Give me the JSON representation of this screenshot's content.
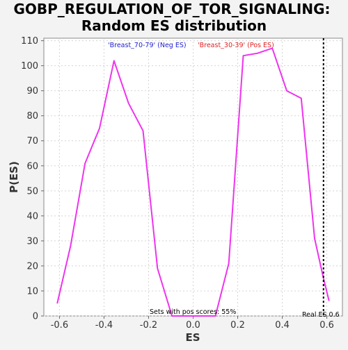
{
  "chart_data": {
    "type": "line",
    "title_lines": [
      "GOBP_REGULATION_OF_TOR_SIGNALING:",
      "Random ES distribution"
    ],
    "xlabel": "ES",
    "ylabel": "P(ES)",
    "xlim": [
      -0.67,
      0.67
    ],
    "ylim": [
      0,
      111
    ],
    "xticks": [
      -0.6,
      -0.4,
      -0.2,
      0.0,
      0.2,
      0.4,
      0.6
    ],
    "xtick_labels": [
      "-0.6",
      "-0.4",
      "-0.2",
      "0.0",
      "0.2",
      "0.4",
      "0.6"
    ],
    "yticks": [
      0,
      10,
      20,
      30,
      40,
      50,
      60,
      70,
      80,
      90,
      100,
      110
    ],
    "ytick_labels": [
      "0",
      "10",
      "20",
      "30",
      "40",
      "50",
      "60",
      "70",
      "80",
      "90",
      "100",
      "110"
    ],
    "grid": true,
    "series": [
      {
        "color": "#ee33ee",
        "x": [
          -0.61,
          -0.55,
          -0.485,
          -0.42,
          -0.355,
          -0.29,
          -0.225,
          -0.16,
          -0.095,
          -0.03,
          0.035,
          0.1,
          0.16,
          0.225,
          0.29,
          0.355,
          0.42,
          0.485,
          0.545,
          0.585,
          0.61
        ],
        "y": [
          5,
          28,
          61,
          75,
          102,
          85,
          74,
          19,
          0,
          0,
          0,
          0,
          21,
          104,
          105,
          107,
          90,
          87,
          31,
          15,
          6
        ]
      }
    ],
    "legend": {
      "placement": "top",
      "neg_label": "'Breast_70-79' (Neg ES)",
      "neg_color": "#2222cc",
      "pos_label": "'Breast_30-39' (Pos ES)",
      "pos_color": "#dd2222"
    },
    "real_es": {
      "value": 0.585,
      "label": "Real ES 0.6"
    },
    "annotation": "Sets with pos scores: 55%"
  }
}
